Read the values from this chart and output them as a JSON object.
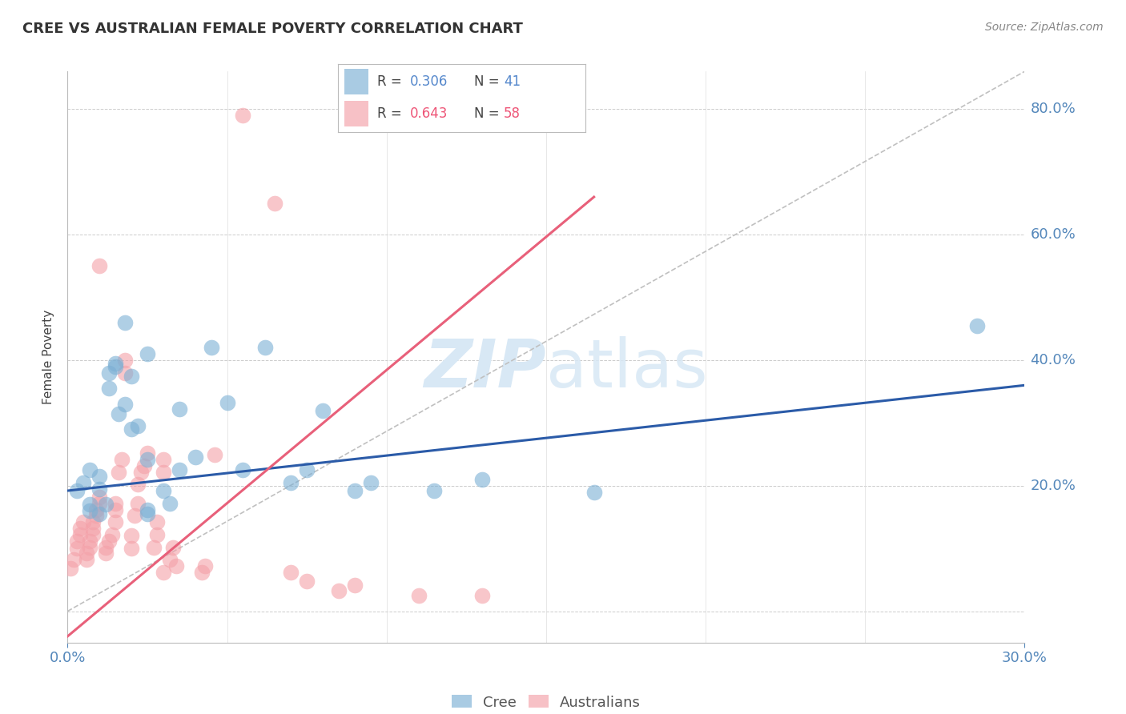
{
  "title": "CREE VS AUSTRALIAN FEMALE POVERTY CORRELATION CHART",
  "source": "Source: ZipAtlas.com",
  "xlim": [
    0.0,
    0.3
  ],
  "ylim": [
    -0.05,
    0.86
  ],
  "ylabel": "Female Poverty",
  "cree_color": "#7BAFD4",
  "aus_color": "#F4A0A8",
  "blue_line_color": "#2B5BA8",
  "pink_line_color": "#E8607A",
  "gray_dash_color": "#C0C0C0",
  "watermark_color": "#D8E8F5",
  "cree_scatter": [
    [
      0.003,
      0.192
    ],
    [
      0.005,
      0.205
    ],
    [
      0.007,
      0.225
    ],
    [
      0.007,
      0.17
    ],
    [
      0.007,
      0.16
    ],
    [
      0.01,
      0.195
    ],
    [
      0.01,
      0.215
    ],
    [
      0.01,
      0.155
    ],
    [
      0.012,
      0.17
    ],
    [
      0.013,
      0.38
    ],
    [
      0.013,
      0.355
    ],
    [
      0.015,
      0.39
    ],
    [
      0.015,
      0.395
    ],
    [
      0.016,
      0.315
    ],
    [
      0.018,
      0.33
    ],
    [
      0.018,
      0.46
    ],
    [
      0.02,
      0.29
    ],
    [
      0.02,
      0.375
    ],
    [
      0.022,
      0.295
    ],
    [
      0.025,
      0.41
    ],
    [
      0.025,
      0.242
    ],
    [
      0.025,
      0.162
    ],
    [
      0.025,
      0.155
    ],
    [
      0.03,
      0.192
    ],
    [
      0.032,
      0.172
    ],
    [
      0.035,
      0.225
    ],
    [
      0.035,
      0.322
    ],
    [
      0.04,
      0.245
    ],
    [
      0.045,
      0.42
    ],
    [
      0.05,
      0.332
    ],
    [
      0.055,
      0.225
    ],
    [
      0.062,
      0.42
    ],
    [
      0.07,
      0.205
    ],
    [
      0.075,
      0.225
    ],
    [
      0.08,
      0.32
    ],
    [
      0.09,
      0.192
    ],
    [
      0.095,
      0.205
    ],
    [
      0.115,
      0.192
    ],
    [
      0.13,
      0.21
    ],
    [
      0.165,
      0.19
    ],
    [
      0.285,
      0.455
    ]
  ],
  "aus_scatter": [
    [
      0.001,
      0.068
    ],
    [
      0.002,
      0.082
    ],
    [
      0.003,
      0.1
    ],
    [
      0.003,
      0.112
    ],
    [
      0.004,
      0.122
    ],
    [
      0.004,
      0.132
    ],
    [
      0.005,
      0.142
    ],
    [
      0.006,
      0.082
    ],
    [
      0.006,
      0.092
    ],
    [
      0.007,
      0.102
    ],
    [
      0.007,
      0.112
    ],
    [
      0.008,
      0.122
    ],
    [
      0.008,
      0.132
    ],
    [
      0.008,
      0.142
    ],
    [
      0.009,
      0.152
    ],
    [
      0.009,
      0.162
    ],
    [
      0.01,
      0.172
    ],
    [
      0.01,
      0.182
    ],
    [
      0.01,
      0.55
    ],
    [
      0.012,
      0.092
    ],
    [
      0.012,
      0.102
    ],
    [
      0.013,
      0.112
    ],
    [
      0.014,
      0.122
    ],
    [
      0.015,
      0.142
    ],
    [
      0.015,
      0.162
    ],
    [
      0.015,
      0.172
    ],
    [
      0.016,
      0.222
    ],
    [
      0.017,
      0.242
    ],
    [
      0.018,
      0.38
    ],
    [
      0.018,
      0.4
    ],
    [
      0.02,
      0.1
    ],
    [
      0.02,
      0.12
    ],
    [
      0.021,
      0.152
    ],
    [
      0.022,
      0.172
    ],
    [
      0.022,
      0.202
    ],
    [
      0.023,
      0.222
    ],
    [
      0.024,
      0.232
    ],
    [
      0.025,
      0.252
    ],
    [
      0.027,
      0.102
    ],
    [
      0.028,
      0.122
    ],
    [
      0.028,
      0.142
    ],
    [
      0.03,
      0.222
    ],
    [
      0.03,
      0.242
    ],
    [
      0.03,
      0.062
    ],
    [
      0.032,
      0.082
    ],
    [
      0.033,
      0.102
    ],
    [
      0.034,
      0.072
    ],
    [
      0.042,
      0.062
    ],
    [
      0.043,
      0.072
    ],
    [
      0.046,
      0.25
    ],
    [
      0.055,
      0.79
    ],
    [
      0.065,
      0.65
    ],
    [
      0.07,
      0.062
    ],
    [
      0.075,
      0.048
    ],
    [
      0.085,
      0.032
    ],
    [
      0.09,
      0.042
    ],
    [
      0.11,
      0.025
    ],
    [
      0.13,
      0.025
    ]
  ],
  "cree_line": [
    [
      0.0,
      0.192
    ],
    [
      0.3,
      0.36
    ]
  ],
  "aus_line": [
    [
      0.0,
      -0.04
    ],
    [
      0.165,
      0.66
    ]
  ],
  "gray_line": [
    [
      0.0,
      0.0
    ],
    [
      0.3,
      0.86
    ]
  ],
  "yticks": [
    0.0,
    0.2,
    0.4,
    0.6,
    0.8
  ],
  "ytick_labels": [
    "",
    "20.0%",
    "40.0%",
    "60.0%",
    "80.0%"
  ],
  "xtick_labels_left": "0.0%",
  "xtick_labels_right": "30.0%"
}
